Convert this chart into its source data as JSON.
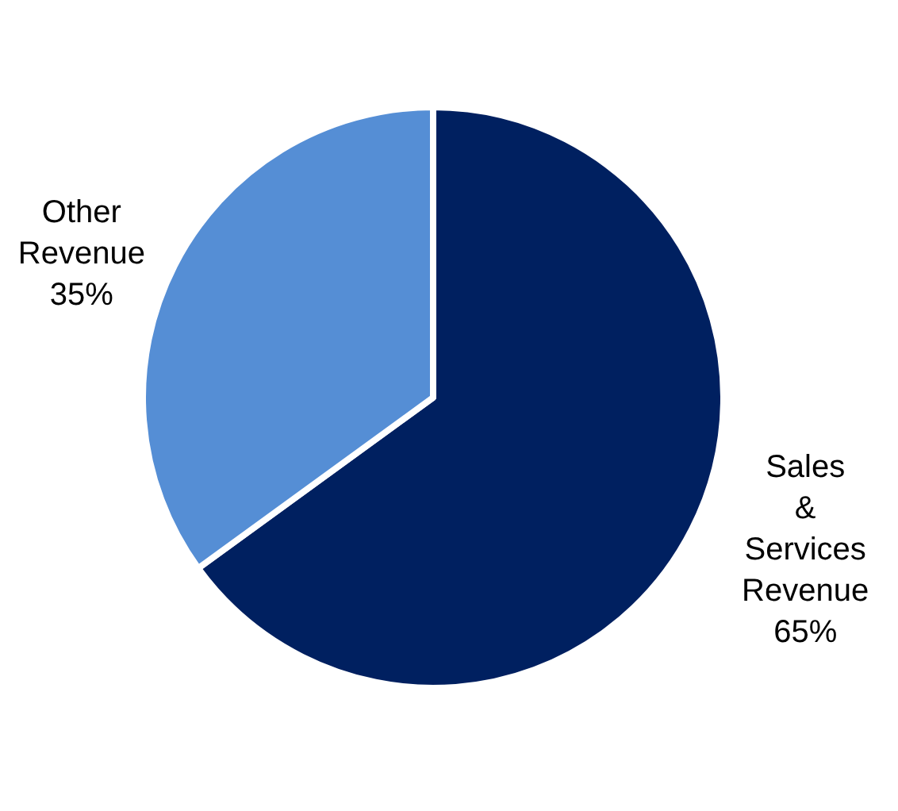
{
  "chart_data": {
    "type": "pie",
    "categories": [
      "Sales & Services Revenue",
      "Other Revenue"
    ],
    "values": [
      65,
      35
    ],
    "colors": [
      "#002060",
      "#558ed5"
    ],
    "value_labels": [
      "65%",
      "35%"
    ],
    "legend": false
  }
}
